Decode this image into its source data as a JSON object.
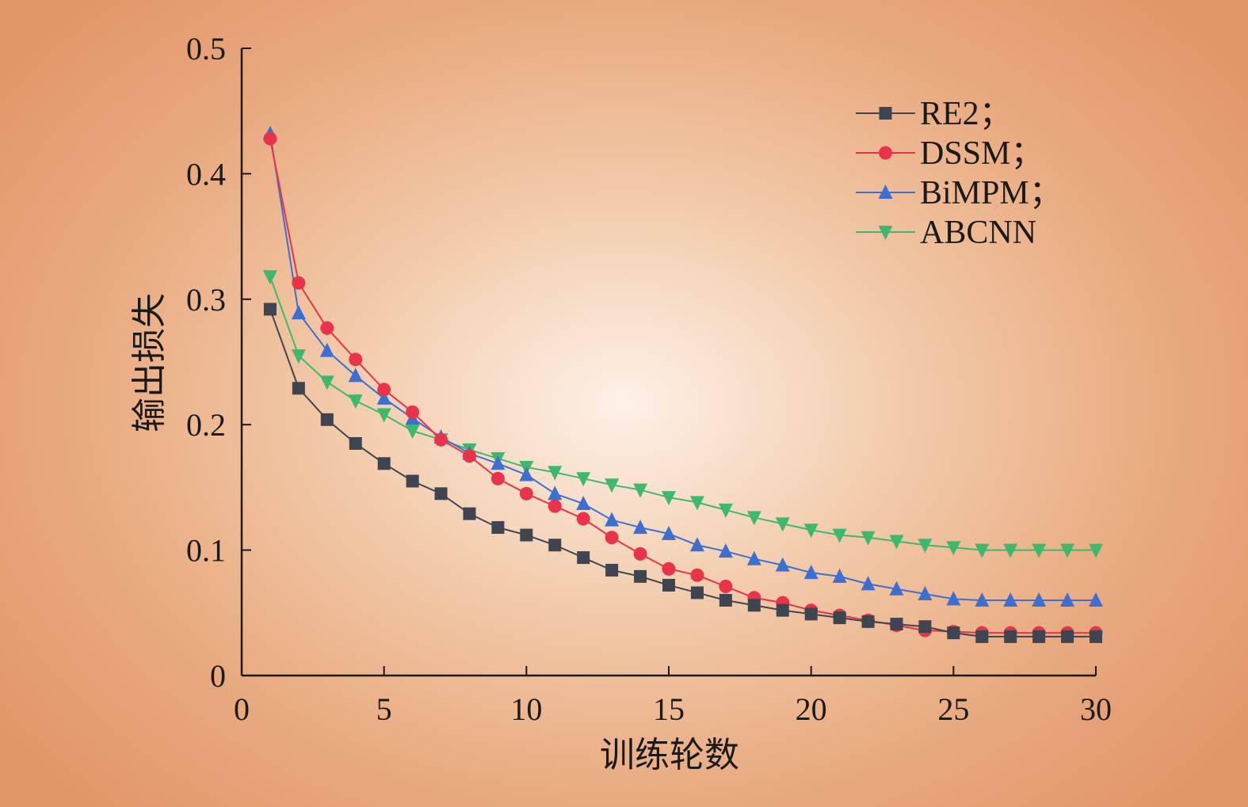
{
  "chart_data": {
    "type": "line",
    "title": "",
    "xlabel": "训练轮数",
    "ylabel": "输出损失",
    "xlim": [
      0,
      30
    ],
    "ylim": [
      0,
      0.5
    ],
    "xticks": [
      0,
      5,
      10,
      15,
      20,
      25,
      30
    ],
    "xtick_labels": [
      "0",
      "5",
      "10",
      "15",
      "20",
      "25",
      "30"
    ],
    "yticks": [
      0,
      0.1,
      0.2,
      0.3,
      0.4,
      0.5
    ],
    "ytick_labels": [
      "0",
      "0.1",
      "0.2",
      "0.3",
      "0.4",
      "0.5"
    ],
    "grid": false,
    "legend_position": "top-right",
    "x": [
      1,
      2,
      3,
      4,
      5,
      6,
      7,
      8,
      9,
      10,
      11,
      12,
      13,
      14,
      15,
      16,
      17,
      18,
      19,
      20,
      21,
      22,
      23,
      24,
      25,
      26,
      27,
      28,
      29,
      30
    ],
    "series": [
      {
        "name": "RE2；",
        "color": "#3f4550",
        "marker": "square",
        "values": [
          0.292,
          0.229,
          0.204,
          0.185,
          0.169,
          0.155,
          0.145,
          0.129,
          0.118,
          0.112,
          0.104,
          0.094,
          0.084,
          0.079,
          0.072,
          0.066,
          0.06,
          0.056,
          0.052,
          0.049,
          0.046,
          0.043,
          0.041,
          0.039,
          0.034,
          0.031,
          0.031,
          0.031,
          0.031,
          0.031
        ]
      },
      {
        "name": "DSSM；",
        "color": "#e8334a",
        "marker": "circle",
        "values": [
          0.428,
          0.313,
          0.277,
          0.252,
          0.228,
          0.21,
          0.188,
          0.175,
          0.157,
          0.145,
          0.135,
          0.125,
          0.11,
          0.097,
          0.085,
          0.08,
          0.071,
          0.062,
          0.058,
          0.052,
          0.048,
          0.044,
          0.04,
          0.036,
          0.035,
          0.034,
          0.034,
          0.034,
          0.034,
          0.034
        ]
      },
      {
        "name": "BiMPM；",
        "color": "#3d6fd1",
        "marker": "triangle-up",
        "values": [
          0.432,
          0.289,
          0.259,
          0.239,
          0.221,
          0.205,
          0.19,
          0.177,
          0.169,
          0.16,
          0.145,
          0.137,
          0.124,
          0.118,
          0.113,
          0.104,
          0.099,
          0.093,
          0.088,
          0.082,
          0.079,
          0.073,
          0.069,
          0.065,
          0.061,
          0.06,
          0.06,
          0.06,
          0.06,
          0.06
        ]
      },
      {
        "name": "ABCNN",
        "color": "#3fb86d",
        "marker": "triangle-down",
        "values": [
          0.318,
          0.255,
          0.234,
          0.219,
          0.208,
          0.195,
          0.188,
          0.18,
          0.173,
          0.166,
          0.162,
          0.157,
          0.152,
          0.148,
          0.142,
          0.138,
          0.132,
          0.126,
          0.121,
          0.116,
          0.112,
          0.11,
          0.107,
          0.104,
          0.102,
          0.1,
          0.1,
          0.1,
          0.1,
          0.1
        ]
      }
    ]
  }
}
